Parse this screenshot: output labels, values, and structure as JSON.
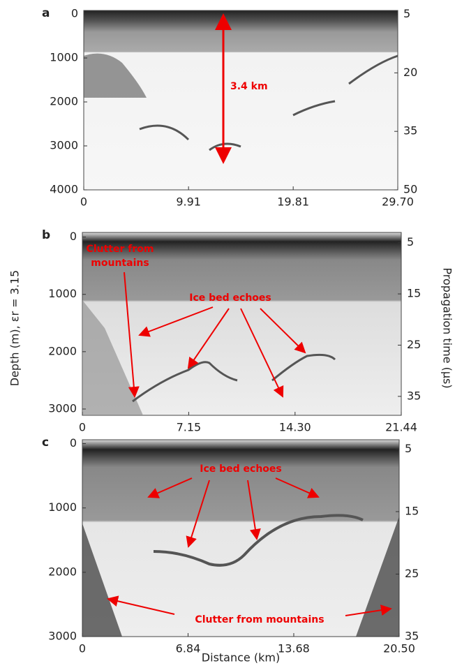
{
  "chart_data": [
    {
      "type": "radargram",
      "panel": "a",
      "xlim": [
        0,
        29.7
      ],
      "xticks": [
        0,
        9.91,
        19.81,
        {
          "value": 29.7,
          "label": "29.70"
        }
      ],
      "ylim": [
        -80,
        4000
      ],
      "yticks": [
        0,
        1000,
        2000,
        3000,
        4000
      ],
      "y2lim": [
        4,
        50
      ],
      "y2ticks": [
        5,
        20,
        35,
        50
      ],
      "annotations": [
        "3.4 km"
      ]
    },
    {
      "type": "radargram",
      "panel": "b",
      "xlim": [
        0,
        21.44
      ],
      "xticks": [
        0,
        7.15,
        {
          "value": 14.3,
          "label": "14.30"
        },
        21.44
      ],
      "ylim": [
        -80,
        3110
      ],
      "yticks": [
        0,
        1000,
        2000,
        3000
      ],
      "y2lim": [
        3,
        38.7
      ],
      "y2ticks": [
        5,
        15,
        25,
        35
      ],
      "ylabel": "Depth (m), εr = 3.15",
      "y2label": "Propagation time (µs)",
      "annotations": [
        "Clutter from",
        "mountains",
        "Ice bed echoes"
      ]
    },
    {
      "type": "radargram",
      "panel": "c",
      "xlim": [
        0,
        20.5
      ],
      "xticks": [
        0,
        6.84,
        13.68,
        {
          "value": 20.5,
          "label": "20.50"
        }
      ],
      "ylim": [
        -60,
        3000
      ],
      "yticks": [
        0,
        1000,
        2000,
        3000
      ],
      "y2lim": [
        3.5,
        35
      ],
      "y2ticks": [
        5,
        15,
        25,
        35
      ],
      "xlabel": "Distance (km)",
      "annotations": [
        "Ice bed echoes",
        "Clutter from mountains"
      ]
    }
  ]
}
